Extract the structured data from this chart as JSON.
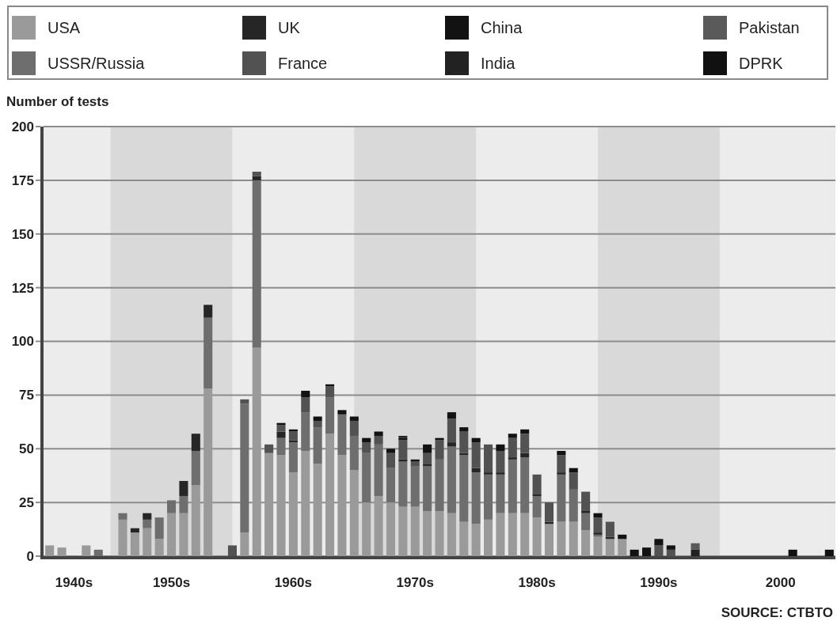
{
  "chart_data": {
    "type": "bar",
    "stacked": true,
    "ylabel": "Number of tests",
    "annotations": [
      "SOURCE: CTBTO"
    ],
    "categories": [
      null,
      null,
      "1940s",
      null,
      null,
      null,
      null,
      null,
      null,
      null,
      "1950s",
      null,
      null,
      null,
      null,
      null,
      null,
      null,
      null,
      null,
      "1960s",
      null,
      null,
      null,
      null,
      null,
      null,
      null,
      null,
      null,
      "1970s",
      null,
      null,
      null,
      null,
      null,
      null,
      null,
      null,
      null,
      "1980s",
      null,
      null,
      null,
      null,
      null,
      null,
      null,
      null,
      null,
      "1990s",
      null,
      null,
      null,
      null,
      null,
      null,
      null,
      null,
      null,
      "2000",
      null,
      null,
      null,
      null
    ],
    "ylim": [
      0,
      200
    ],
    "yticks": [
      0,
      25,
      50,
      75,
      100,
      125,
      150,
      175,
      200
    ],
    "grid": "y",
    "legend": "top",
    "series": [
      {
        "name": "USA",
        "color": "#9a9a9a",
        "values": [
          5,
          4,
          0,
          5,
          0,
          0,
          17,
          11,
          13,
          8,
          20,
          20,
          33,
          78,
          0,
          0,
          11,
          97,
          48,
          47,
          39,
          49,
          43,
          57,
          47,
          40,
          25,
          28,
          25,
          23,
          23,
          21,
          21,
          20,
          16,
          15,
          17,
          20,
          20,
          20,
          18,
          15,
          16,
          16,
          12,
          9,
          8,
          8,
          0,
          0,
          0,
          0,
          0,
          0,
          0,
          0,
          0,
          0,
          0,
          0,
          0,
          0,
          0,
          0,
          0
        ]
      },
      {
        "name": "USSR/Russia",
        "color": "#6e6e6e",
        "values": [
          0,
          0,
          0,
          0,
          3,
          0,
          3,
          0,
          4,
          10,
          6,
          8,
          16,
          33,
          0,
          0,
          60,
          78,
          0,
          8,
          14,
          18,
          17,
          17,
          19,
          16,
          23,
          24,
          16,
          21,
          19,
          21,
          24,
          31,
          31,
          24,
          21,
          18,
          25,
          26,
          10,
          0,
          22,
          15,
          8,
          1,
          0,
          0,
          0,
          0,
          0,
          0,
          0,
          0,
          0,
          0,
          0,
          0,
          0,
          0,
          0,
          0,
          0,
          0,
          0
        ]
      },
      {
        "name": "UK",
        "color": "#262626",
        "values": [
          0,
          0,
          0,
          0,
          0,
          0,
          0,
          2,
          3,
          0,
          0,
          7,
          8,
          6,
          0,
          0,
          0,
          2,
          0,
          3,
          1,
          0,
          0,
          0,
          0,
          0,
          0,
          0,
          0,
          1,
          0,
          1,
          0,
          2,
          1,
          2,
          1,
          1,
          1,
          2,
          1,
          1,
          1,
          0,
          1,
          1,
          1,
          0,
          0,
          0,
          0,
          0,
          0,
          0,
          0,
          0,
          0,
          0,
          0,
          0,
          0,
          0,
          0,
          0,
          0
        ]
      },
      {
        "name": "France",
        "color": "#525252",
        "values": [
          0,
          0,
          0,
          0,
          0,
          0,
          0,
          0,
          0,
          0,
          0,
          0,
          0,
          0,
          0,
          5,
          2,
          2,
          4,
          3,
          4,
          7,
          3,
          5,
          0,
          7,
          5,
          4,
          7,
          9,
          2,
          5,
          9,
          11,
          10,
          12,
          13,
          10,
          9,
          9,
          9,
          9,
          8,
          8,
          9,
          7,
          7,
          0,
          0,
          0,
          5,
          3,
          0,
          0,
          0,
          0,
          0,
          0,
          0,
          0,
          0,
          0,
          0,
          0,
          0
        ]
      },
      {
        "name": "China",
        "color": "#121212",
        "values": [
          0,
          0,
          0,
          0,
          0,
          0,
          0,
          0,
          0,
          0,
          0,
          0,
          0,
          0,
          0,
          0,
          0,
          0,
          0,
          1,
          1,
          3,
          2,
          1,
          2,
          2,
          2,
          2,
          2,
          1,
          1,
          4,
          1,
          3,
          2,
          2,
          0,
          3,
          2,
          2,
          0,
          0,
          2,
          2,
          0,
          2,
          0,
          2,
          3,
          4,
          3,
          2,
          0,
          0,
          0,
          0,
          0,
          0,
          0,
          0,
          0,
          0,
          0,
          0,
          0
        ]
      },
      {
        "name": "India",
        "color": "#222222",
        "values": [
          0,
          0,
          0,
          0,
          0,
          0,
          0,
          0,
          0,
          0,
          0,
          0,
          0,
          0,
          0,
          0,
          0,
          0,
          0,
          0,
          0,
          0,
          0,
          0,
          0,
          0,
          0,
          0,
          0,
          1,
          0,
          0,
          0,
          0,
          0,
          0,
          0,
          0,
          0,
          0,
          0,
          0,
          0,
          0,
          0,
          0,
          0,
          0,
          0,
          0,
          0,
          0,
          0,
          3,
          0,
          0,
          0,
          0,
          0,
          0,
          0,
          0,
          0,
          0,
          0
        ]
      },
      {
        "name": "Pakistan",
        "color": "#5a5a5a",
        "values": [
          0,
          0,
          0,
          0,
          0,
          0,
          0,
          0,
          0,
          0,
          0,
          0,
          0,
          0,
          0,
          0,
          0,
          0,
          0,
          0,
          0,
          0,
          0,
          0,
          0,
          0,
          0,
          0,
          0,
          0,
          0,
          0,
          0,
          0,
          0,
          0,
          0,
          0,
          0,
          0,
          0,
          0,
          0,
          0,
          0,
          0,
          0,
          0,
          0,
          0,
          0,
          0,
          0,
          3,
          0,
          0,
          0,
          0,
          0,
          0,
          0,
          0,
          0,
          0,
          0
        ]
      },
      {
        "name": "DPRK",
        "color": "#111111",
        "values": [
          0,
          0,
          0,
          0,
          0,
          0,
          0,
          0,
          0,
          0,
          0,
          0,
          0,
          0,
          0,
          0,
          0,
          0,
          0,
          0,
          0,
          0,
          0,
          0,
          0,
          0,
          0,
          0,
          0,
          0,
          0,
          0,
          0,
          0,
          0,
          0,
          0,
          0,
          0,
          0,
          0,
          0,
          0,
          0,
          0,
          0,
          0,
          0,
          0,
          0,
          0,
          0,
          0,
          0,
          0,
          0,
          0,
          0,
          0,
          0,
          0,
          3,
          0,
          0,
          3
        ]
      }
    ]
  }
}
